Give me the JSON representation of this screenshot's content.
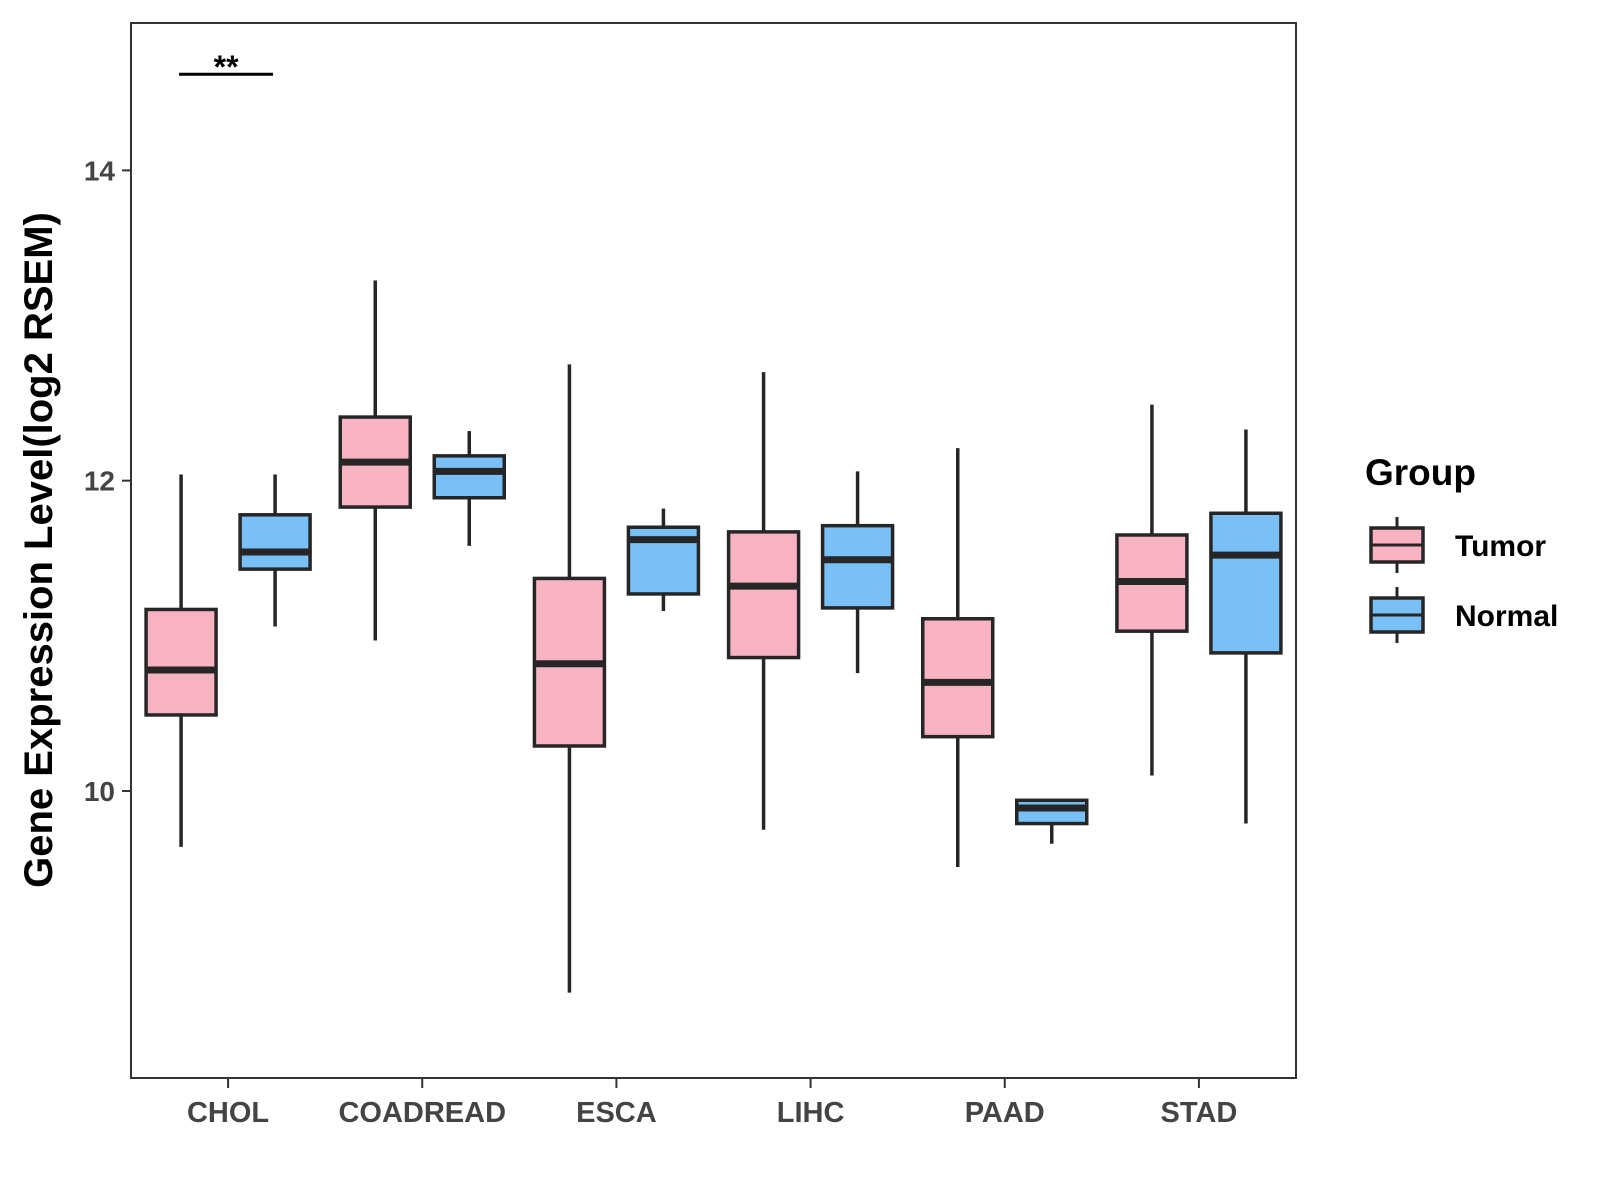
{
  "chart_data": {
    "type": "boxplot",
    "title": "",
    "xlabel": "",
    "ylabel": "Gene Expression Level(log2 RSEM)",
    "ylim": [
      8.15,
      14.95
    ],
    "yticks": [
      10,
      12,
      14
    ],
    "categories": [
      "CHOL",
      "COADREAD",
      "ESCA",
      "LIHC",
      "PAAD",
      "STAD"
    ],
    "legend": {
      "title": "Group",
      "position": "right",
      "entries": [
        "Tumor",
        "Normal"
      ]
    },
    "series": [
      {
        "name": "Tumor",
        "color": "#F8B3C2",
        "boxes": [
          {
            "category": "CHOL",
            "min": 9.64,
            "q1": 10.49,
            "median": 10.78,
            "q3": 11.17,
            "max": 12.04
          },
          {
            "category": "COADREAD",
            "min": 10.97,
            "q1": 11.83,
            "median": 12.12,
            "q3": 12.41,
            "max": 13.29
          },
          {
            "category": "ESCA",
            "min": 8.7,
            "q1": 10.29,
            "median": 10.82,
            "q3": 11.37,
            "max": 12.75
          },
          {
            "category": "LIHC",
            "min": 9.75,
            "q1": 10.86,
            "median": 11.32,
            "q3": 11.67,
            "max": 12.7
          },
          {
            "category": "PAAD",
            "min": 9.51,
            "q1": 10.35,
            "median": 10.7,
            "q3": 11.11,
            "max": 12.21
          },
          {
            "category": "STAD",
            "min": 10.1,
            "q1": 11.03,
            "median": 11.35,
            "q3": 11.65,
            "max": 12.49
          }
        ]
      },
      {
        "name": "Normal",
        "color": "#78C0F5",
        "boxes": [
          {
            "category": "CHOL",
            "min": 11.06,
            "q1": 11.43,
            "median": 11.54,
            "q3": 11.78,
            "max": 12.04
          },
          {
            "category": "COADREAD",
            "min": 11.58,
            "q1": 11.89,
            "median": 12.06,
            "q3": 12.16,
            "max": 12.32
          },
          {
            "category": "ESCA",
            "min": 11.16,
            "q1": 11.27,
            "median": 11.62,
            "q3": 11.7,
            "max": 11.82
          },
          {
            "category": "LIHC",
            "min": 10.76,
            "q1": 11.18,
            "median": 11.49,
            "q3": 11.71,
            "max": 12.06
          },
          {
            "category": "PAAD",
            "min": 9.66,
            "q1": 9.79,
            "median": 9.89,
            "q3": 9.94,
            "max": 9.94
          },
          {
            "category": "STAD",
            "min": 9.79,
            "q1": 10.89,
            "median": 11.52,
            "q3": 11.79,
            "max": 12.33
          }
        ]
      }
    ],
    "annotations": [
      {
        "category": "CHOL",
        "text": "**",
        "y": 14.62
      }
    ]
  }
}
